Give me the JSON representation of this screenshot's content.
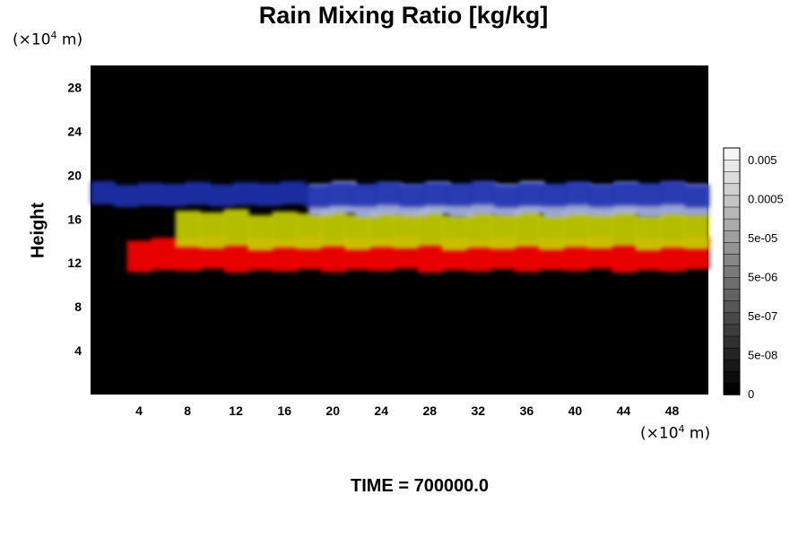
{
  "chart_data": {
    "type": "heatmap",
    "title": "Rain Mixing Ratio [kg/kg]",
    "ylabel": "Height",
    "x_unit": "(×10⁴ m)",
    "y_unit": "(×10⁴ m)",
    "xlim": [
      0,
      51
    ],
    "ylim": [
      0,
      30
    ],
    "x_ticks": [
      "4",
      "8",
      "12",
      "16",
      "20",
      "24",
      "28",
      "32",
      "36",
      "40",
      "44",
      "48"
    ],
    "y_ticks": [
      "4",
      "8",
      "12",
      "16",
      "20",
      "24",
      "28"
    ],
    "colorbar": {
      "ticks": [
        "0.005",
        "0.0005",
        "5e-05",
        "5e-06",
        "5e-07",
        "5e-08",
        "0"
      ]
    },
    "background_color": "#000000",
    "layers": [
      {
        "color": "#ff0000",
        "y_range": [
          11,
          14.5
        ],
        "x_range": [
          3,
          51
        ]
      },
      {
        "color": "#c8d200",
        "y_range": [
          13,
          17
        ],
        "x_range": [
          7,
          51
        ]
      },
      {
        "color": "#a8b4e8",
        "y_range": [
          16,
          19.5
        ],
        "x_range": [
          18,
          51
        ]
      },
      {
        "color": "#2030b0",
        "y_range": [
          17,
          19.5
        ],
        "x_range": [
          0,
          51
        ]
      }
    ]
  },
  "footer": {
    "time_label": "TIME = 700000.0"
  }
}
